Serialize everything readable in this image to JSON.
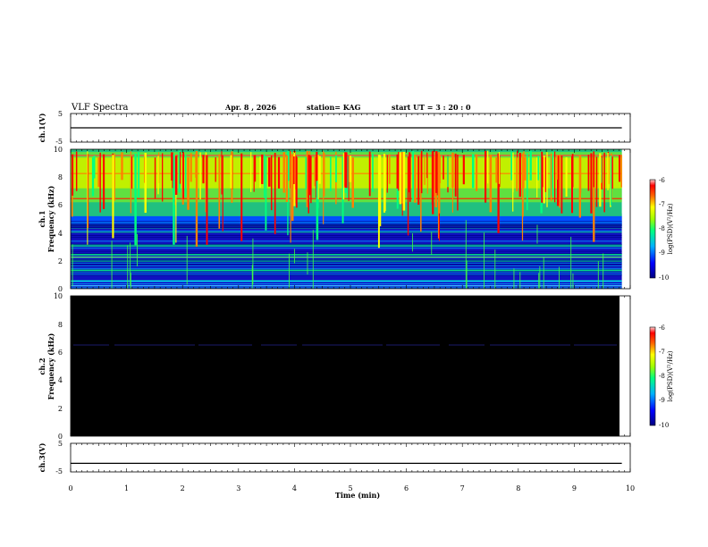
{
  "header": {
    "title": "VLF Spectra",
    "date": "Apr. 8  , 2026",
    "station": "station= KAG",
    "start": "start  UT =   3  : 20 : 0"
  },
  "chart_data": [
    {
      "type": "line",
      "panel": "ch1-waveform",
      "ylabel": "ch.1(V)",
      "ylim": [
        -5,
        5
      ],
      "yticks": [
        "5",
        "-5"
      ],
      "x": [
        0,
        9.85
      ],
      "y": [
        0,
        0
      ],
      "note": "flat trace near zero"
    },
    {
      "type": "heatmap",
      "panel": "ch1-spectrogram",
      "ylabel": "Frequency (kHz)",
      "panel_label": "ch.1",
      "ylim": [
        0,
        10
      ],
      "yticks": [
        "0",
        "2",
        "4",
        "6",
        "8",
        "10"
      ],
      "time_range_min": [
        0,
        9.85
      ],
      "bands_khz": {
        "strong_activity": [
          5.5,
          10
        ],
        "background": [
          0,
          5
        ]
      },
      "colorbar": {
        "label": "log(PSD)(V²/Hz)",
        "range": [
          -10,
          -6
        ],
        "ticks": [
          "-6",
          "-7",
          "-8",
          "-9",
          "-10"
        ]
      }
    },
    {
      "type": "heatmap",
      "panel": "ch2-spectrogram",
      "ylabel": "Frequency (kHz)",
      "panel_label": "ch.2",
      "ylim": [
        0,
        10
      ],
      "yticks": [
        "0",
        "2",
        "4",
        "6",
        "8",
        "10"
      ],
      "time_range_min": [
        0,
        9.85
      ],
      "faint_line_khz": 6.5,
      "colorbar": {
        "label": "log(PSD)(V²/Hz)",
        "range": [
          -10,
          -6
        ],
        "ticks": [
          "-6",
          "-7",
          "-8",
          "-9",
          "-10"
        ]
      }
    },
    {
      "type": "line",
      "panel": "ch3-waveform",
      "ylabel": "ch.3(V)",
      "ylim": [
        -5,
        5
      ],
      "yticks": [
        "5",
        "-5"
      ],
      "x": [
        0,
        9.85
      ],
      "y": [
        -2,
        -2
      ],
      "note": "flat trace"
    }
  ],
  "xaxis": {
    "label": "Time  (min)",
    "ticks": [
      "0",
      "1",
      "2",
      "3",
      "4",
      "5",
      "6",
      "7",
      "8",
      "9",
      "10"
    ],
    "range": [
      0,
      10
    ]
  },
  "colors": {
    "background": "#ffffff",
    "ch2_fill": "#000000",
    "ch1_background": "#1010c0",
    "colormap": [
      "#000080",
      "#0000ff",
      "#00c0ff",
      "#00ff80",
      "#80ff00",
      "#ffff00",
      "#ff8000",
      "#ff0000",
      "#ffffff"
    ]
  }
}
